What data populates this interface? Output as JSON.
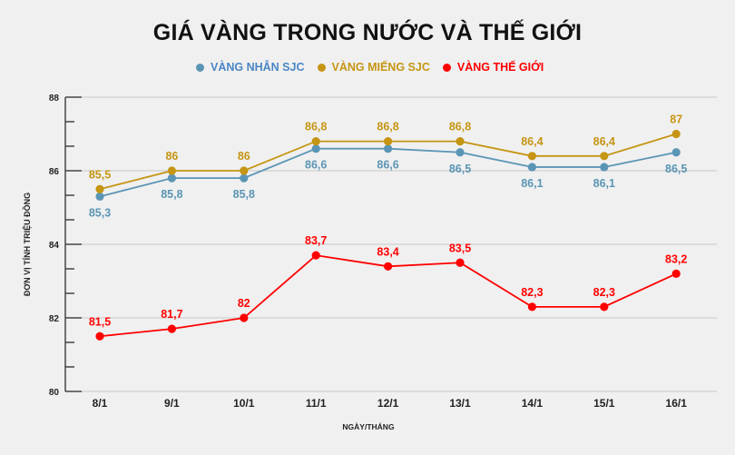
{
  "chart_data": {
    "type": "line",
    "title": "GIÁ VÀNG TRONG NƯỚC VÀ THẾ GIỚI",
    "xlabel": "NGÀY/THÁNG",
    "ylabel": "ĐƠN VỊ TÍNH TRIỆU ĐỒNG",
    "categories": [
      "8/1",
      "9/1",
      "10/1",
      "11/1",
      "12/1",
      "13/1",
      "14/1",
      "15/1",
      "16/1"
    ],
    "ylim": [
      80,
      88
    ],
    "yticks": [
      "80",
      "82",
      "84",
      "86",
      "88"
    ],
    "grid": true,
    "legend": "top-right",
    "series": [
      {
        "name": "VÀNG NHẪN SJC",
        "color": "#5b95b5",
        "label_color": "#5b95b5",
        "labels_below": true,
        "values": [
          85.3,
          85.8,
          85.8,
          86.6,
          86.6,
          86.5,
          86.1,
          86.1,
          86.5
        ],
        "labels": [
          "85,3",
          "85,8",
          "85,8",
          "86,6",
          "86,6",
          "86,5",
          "86,1",
          "86,1",
          "86,5"
        ]
      },
      {
        "name": "VÀNG MIẾNG SJC",
        "color": "#c59513",
        "label_color": "#c59513",
        "labels_below": false,
        "values": [
          85.5,
          86,
          86,
          86.8,
          86.8,
          86.8,
          86.4,
          86.4,
          87
        ],
        "labels": [
          "85,5",
          "86",
          "86",
          "86,8",
          "86,8",
          "86,8",
          "86,4",
          "86,4",
          "87"
        ]
      },
      {
        "name": "VÀNG THẾ GIỚI",
        "color": "#ff0000",
        "label_color": "#ff0000",
        "labels_below": false,
        "values": [
          81.5,
          81.7,
          82,
          83.7,
          83.4,
          83.5,
          82.3,
          82.3,
          83.2
        ],
        "labels": [
          "81,5",
          "81,7",
          "82",
          "83,7",
          "83,4",
          "83,5",
          "82,3",
          "82,3",
          "83,2"
        ]
      }
    ]
  }
}
